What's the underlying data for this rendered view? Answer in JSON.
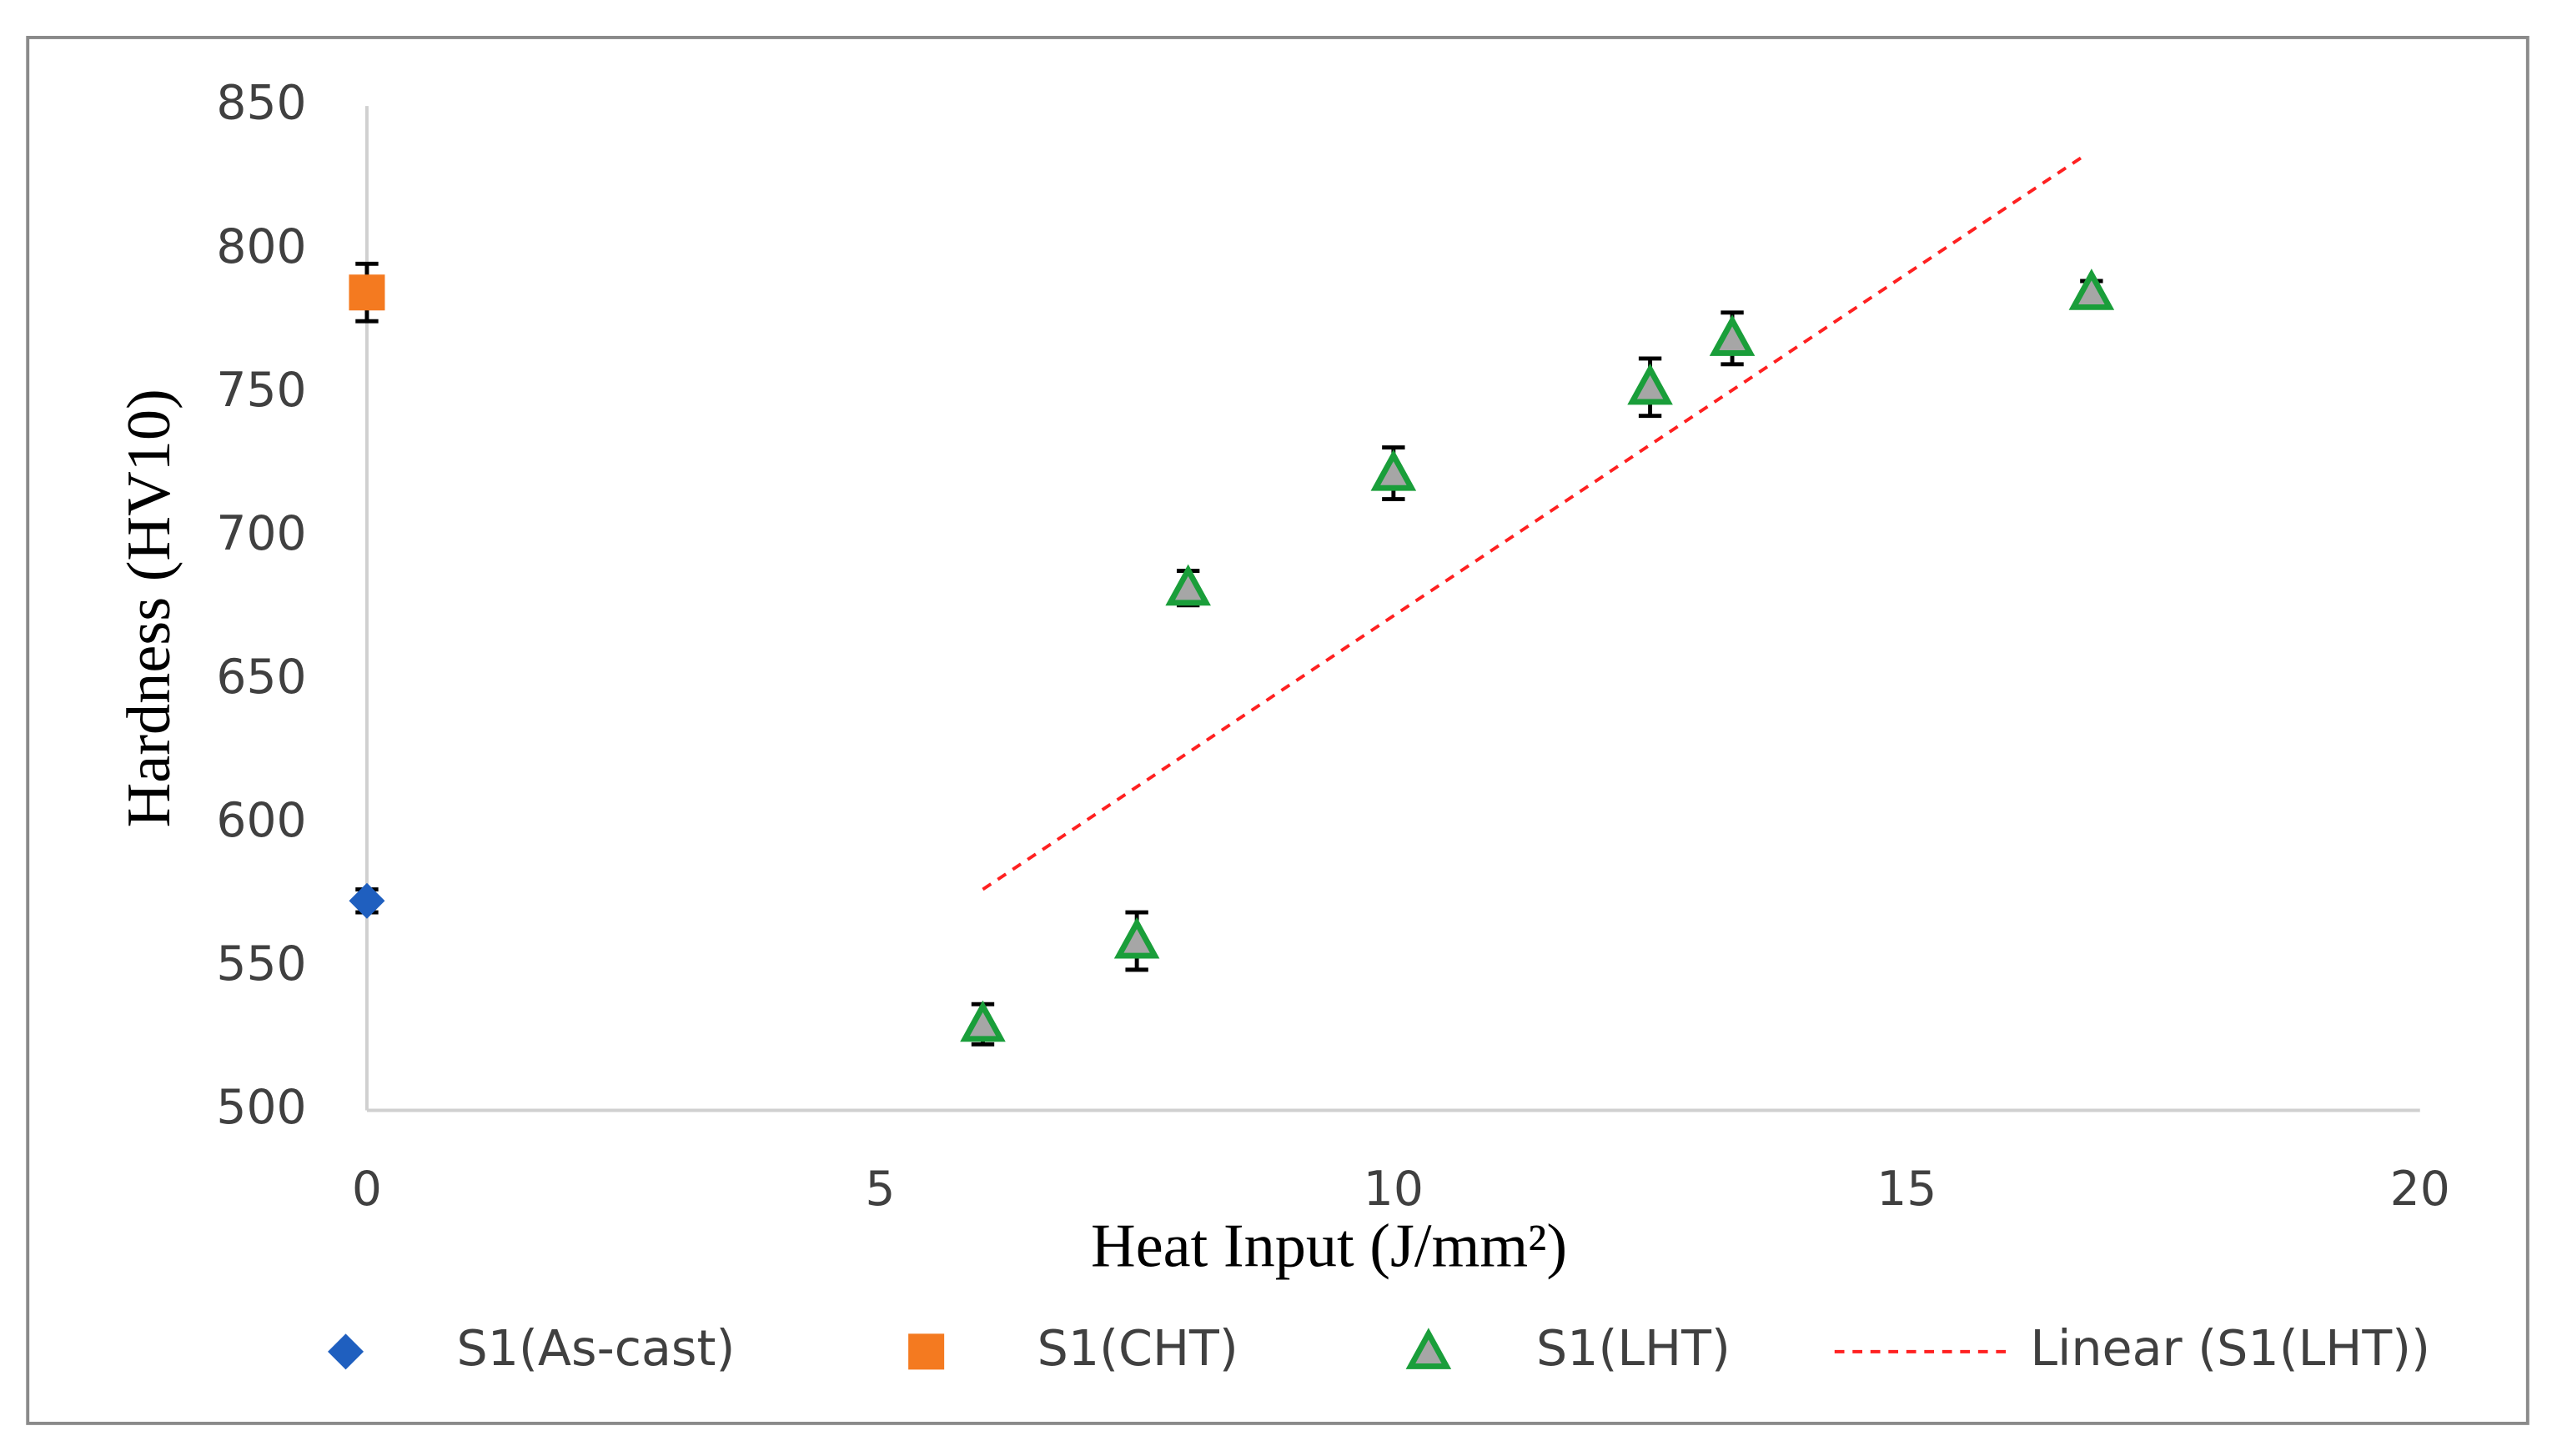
{
  "chart_data": {
    "type": "scatter",
    "xlabel": "Heat Input (J/mm²)",
    "ylabel": "Hardness (HV10)",
    "xlim": [
      0,
      20
    ],
    "xticks": [
      0,
      5,
      10,
      15,
      20
    ],
    "ylim": [
      500,
      850
    ],
    "yticks": [
      500,
      550,
      600,
      650,
      700,
      750,
      800,
      850
    ],
    "grid": false,
    "legend": "bottom",
    "series": [
      {
        "name": "S1(As-cast)",
        "color": "#1f5fbf",
        "marker": "diamond",
        "x": [
          0
        ],
        "values": [
          573
        ],
        "errors": [
          4
        ]
      },
      {
        "name": "S1(CHT)",
        "color": "#f47a20",
        "marker": "square",
        "x": [
          0
        ],
        "values": [
          785
        ],
        "errors": [
          10
        ]
      },
      {
        "name": "S1(LHT)",
        "color": "#1a9e3a",
        "marker": "triangle",
        "x": [
          6,
          7.5,
          8,
          10,
          12.5,
          13.3,
          16.8
        ],
        "values": [
          530,
          559,
          682,
          722,
          752,
          769,
          785
        ],
        "errors": [
          7,
          10,
          6,
          9,
          10,
          9,
          4
        ]
      },
      {
        "name": "Linear (S1(LHT))",
        "color": "#ff2020",
        "type": "line",
        "dash": true,
        "x": [
          6,
          16.7
        ],
        "values": [
          577,
          832
        ]
      }
    ]
  }
}
